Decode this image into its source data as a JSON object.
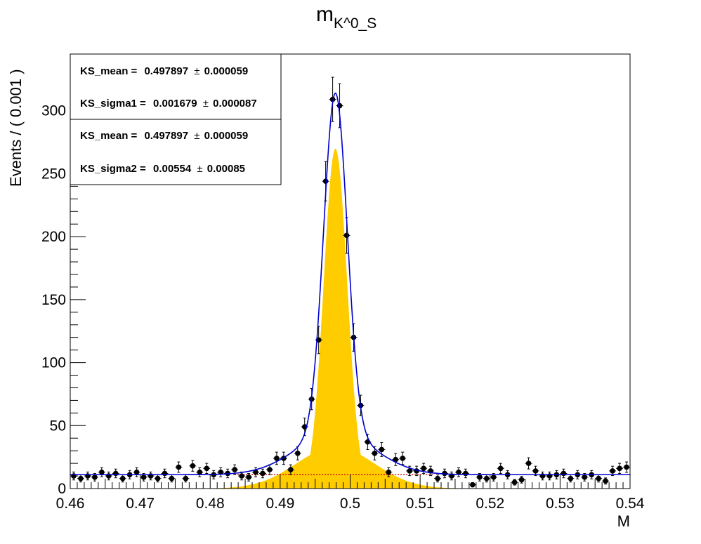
{
  "chart_data": {
    "type": "scatter",
    "title": "m",
    "title_subscript": "K^0_S",
    "xlabel": "M",
    "ylabel": "Events / ( 0.001 )",
    "xlim": [
      0.46,
      0.54
    ],
    "ylim": [
      0,
      345
    ],
    "x_ticks": [
      "0.46",
      "0.47",
      "0.48",
      "0.49",
      "0.5",
      "0.51",
      "0.52",
      "0.53",
      "0.54"
    ],
    "y_ticks": [
      "0",
      "50",
      "100",
      "150",
      "200",
      "250",
      "300"
    ],
    "x_tick_values": [
      0.46,
      0.47,
      0.48,
      0.49,
      0.5,
      0.51,
      0.52,
      0.53,
      0.54
    ],
    "y_tick_values": [
      0,
      50,
      100,
      150,
      200,
      250,
      300
    ],
    "grid": false,
    "bin_width": 0.001,
    "series": [
      {
        "kind": "data-points-with-errors",
        "x": [
          0.4605,
          0.4615,
          0.4625,
          0.4635,
          0.4645,
          0.4655,
          0.4665,
          0.4675,
          0.4685,
          0.4695,
          0.4705,
          0.4715,
          0.4725,
          0.4735,
          0.4745,
          0.4755,
          0.4765,
          0.4775,
          0.4785,
          0.4795,
          0.4805,
          0.4815,
          0.4825,
          0.4835,
          0.4845,
          0.4855,
          0.4865,
          0.4875,
          0.4885,
          0.4895,
          0.4905,
          0.4915,
          0.4925,
          0.4935,
          0.4945,
          0.4955,
          0.4965,
          0.4975,
          0.4985,
          0.4995,
          0.5005,
          0.5015,
          0.5025,
          0.5035,
          0.5045,
          0.5055,
          0.5065,
          0.5075,
          0.5085,
          0.5095,
          0.5105,
          0.5115,
          0.5125,
          0.5135,
          0.5145,
          0.5155,
          0.5165,
          0.5175,
          0.5185,
          0.5195,
          0.5205,
          0.5215,
          0.5225,
          0.5235,
          0.5245,
          0.5255,
          0.5265,
          0.5275,
          0.5285,
          0.5295,
          0.5305,
          0.5315,
          0.5325,
          0.5335,
          0.5345,
          0.5355,
          0.5365,
          0.5375,
          0.5385,
          0.5395
        ],
        "y": [
          10,
          8,
          10,
          9,
          13,
          10,
          12,
          8,
          11,
          13,
          9,
          10,
          8,
          12,
          8,
          17,
          8,
          18,
          13,
          16,
          11,
          13,
          12,
          15,
          10,
          9,
          13,
          12,
          15,
          24,
          24,
          15,
          28,
          49,
          71,
          118,
          244,
          309,
          304,
          201,
          120,
          66,
          37,
          28,
          31,
          13,
          23,
          24,
          14,
          14,
          16,
          14,
          8,
          12,
          10,
          13,
          12,
          3,
          9,
          8,
          9,
          16,
          11,
          5,
          7,
          20,
          14,
          10,
          10,
          11,
          12,
          8,
          11,
          9,
          11,
          8,
          6,
          14,
          16,
          17
        ]
      }
    ],
    "fit": {
      "baseline": 11,
      "mean": 0.497897,
      "sigma1": 0.001679,
      "sigma2": 0.00554,
      "peak_total": 314,
      "narrow_amp": 270,
      "wide_amp": 33,
      "line_color": "#0000cc",
      "fill_color": "#ffcc00",
      "background_color": "#cc0000"
    },
    "stats_boxes": [
      {
        "rows": [
          {
            "name": "KS_mean =",
            "value": "0.497897",
            "pm": "±",
            "err": "0.000059"
          },
          {
            "name": "KS_sigma1 =",
            "value": "0.001679",
            "pm": "±",
            "err": "0.000087"
          }
        ]
      },
      {
        "rows": [
          {
            "name": "KS_mean =",
            "value": "0.497897",
            "pm": "±",
            "err": "0.000059"
          },
          {
            "name": "KS_sigma2 =",
            "value": "0.00554",
            "pm": "±",
            "err": "0.00085"
          }
        ]
      }
    ]
  }
}
